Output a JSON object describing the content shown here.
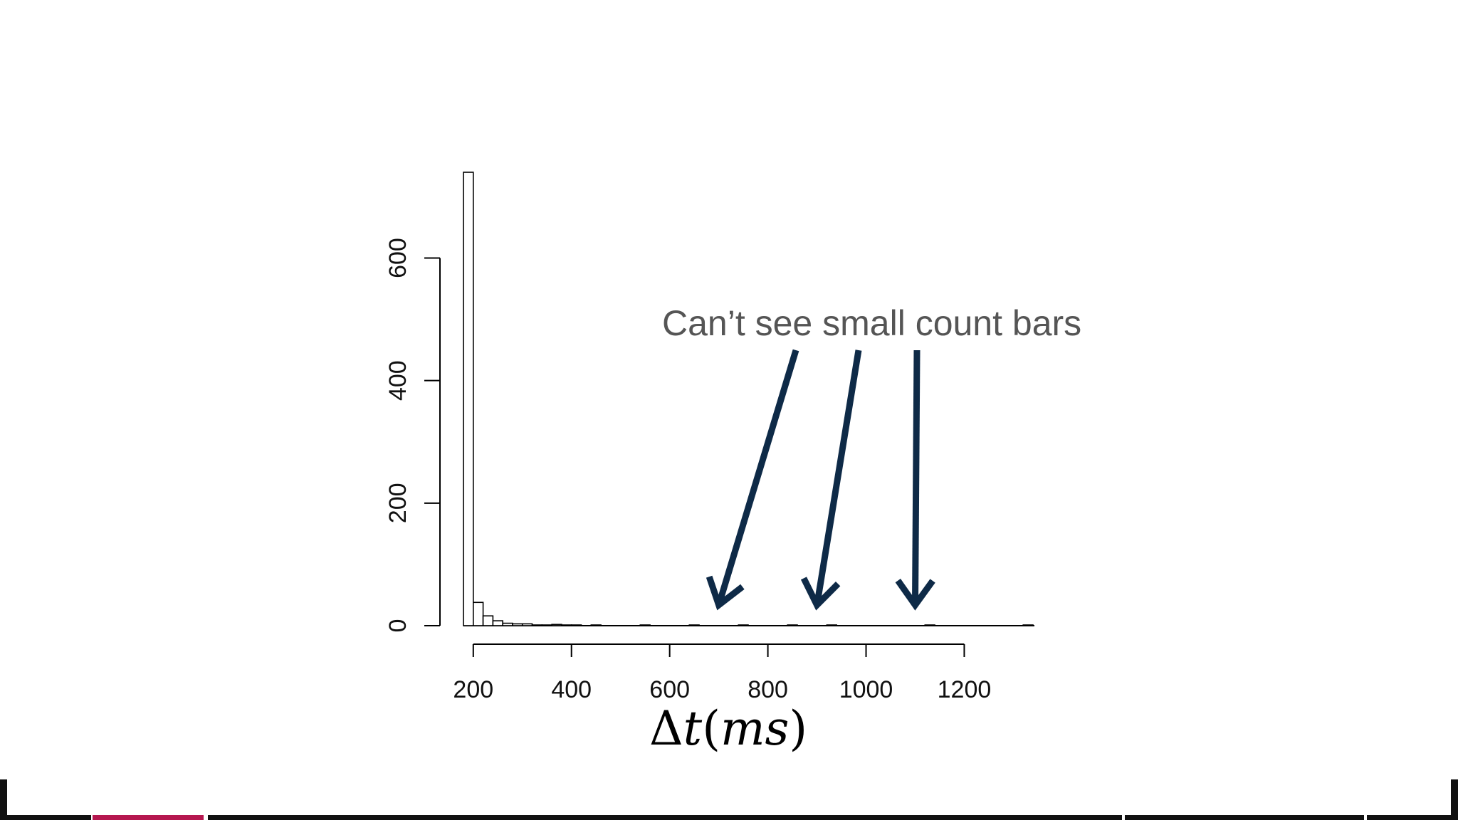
{
  "slide": {
    "annotation": "Can’t see small count bars",
    "colors": {
      "arrow": "#0e2a47",
      "annotation_text": "#555555",
      "bars": "#000000",
      "strip_accent": "#b5174f"
    }
  },
  "chart_data": {
    "type": "bar",
    "xlabel_parts": {
      "delta": "Δ",
      "t": "t",
      "open": "(",
      "ms": "ms",
      "close": ")"
    },
    "ylabel": "",
    "bin_width": 20,
    "bins": [
      {
        "x0": 180,
        "x1": 200,
        "count": 740
      },
      {
        "x0": 200,
        "x1": 220,
        "count": 38
      },
      {
        "x0": 220,
        "x1": 240,
        "count": 16
      },
      {
        "x0": 240,
        "x1": 260,
        "count": 8
      },
      {
        "x0": 260,
        "x1": 280,
        "count": 4
      },
      {
        "x0": 280,
        "x1": 300,
        "count": 3
      },
      {
        "x0": 300,
        "x1": 320,
        "count": 3
      },
      {
        "x0": 320,
        "x1": 340,
        "count": 1
      },
      {
        "x0": 340,
        "x1": 360,
        "count": 1
      },
      {
        "x0": 360,
        "x1": 380,
        "count": 2
      },
      {
        "x0": 380,
        "x1": 400,
        "count": 1
      },
      {
        "x0": 400,
        "x1": 420,
        "count": 1
      },
      {
        "x0": 440,
        "x1": 460,
        "count": 1
      },
      {
        "x0": 540,
        "x1": 560,
        "count": 1
      },
      {
        "x0": 640,
        "x1": 660,
        "count": 1
      },
      {
        "x0": 740,
        "x1": 760,
        "count": 1
      },
      {
        "x0": 840,
        "x1": 860,
        "count": 1
      },
      {
        "x0": 920,
        "x1": 940,
        "count": 1
      },
      {
        "x0": 1120,
        "x1": 1140,
        "count": 1
      },
      {
        "x0": 1320,
        "x1": 1340,
        "count": 1
      }
    ],
    "xlim": [
      180,
      1340
    ],
    "ylim": [
      0,
      740
    ],
    "xticks": [
      200,
      400,
      600,
      800,
      1000,
      1200
    ],
    "xtick_labels": [
      "200",
      "400",
      "600",
      "800",
      "1000",
      "1200"
    ],
    "yticks": [
      0,
      200,
      400,
      600
    ],
    "ytick_labels": [
      "0",
      "200",
      "400",
      "600"
    ],
    "arrow_targets": [
      700,
      900,
      1100
    ],
    "grid": false,
    "legend": "none"
  }
}
